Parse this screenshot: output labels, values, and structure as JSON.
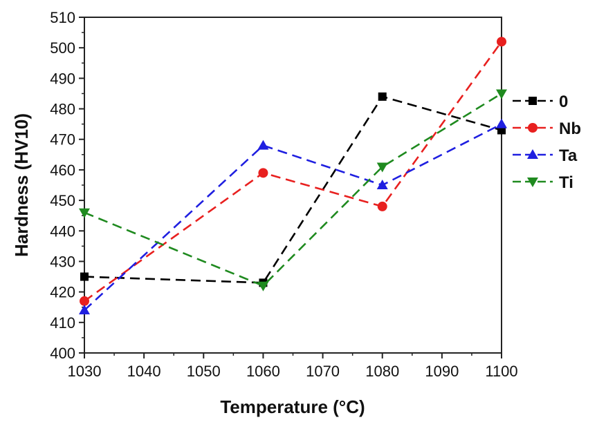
{
  "chart_data": {
    "type": "line",
    "xlabel": "Temperature (°C)",
    "ylabel": "Hardness (HV10)",
    "xlim": [
      1030,
      1100
    ],
    "ylim": [
      400,
      510
    ],
    "x_ticks": [
      1030,
      1040,
      1050,
      1060,
      1070,
      1080,
      1090,
      1100
    ],
    "y_ticks": [
      400,
      410,
      420,
      430,
      440,
      450,
      460,
      470,
      480,
      490,
      500,
      510
    ],
    "grid": false,
    "legend_position": "right",
    "x": [
      1030,
      1060,
      1080,
      1100
    ],
    "series": [
      {
        "name": "0",
        "color": "#000000",
        "marker": "square",
        "values": [
          425,
          423,
          484,
          473
        ]
      },
      {
        "name": "Nb",
        "color": "#e8201f",
        "marker": "circle",
        "values": [
          417,
          459,
          448,
          502
        ]
      },
      {
        "name": "Ta",
        "color": "#1f1fe0",
        "marker": "triangle-up",
        "values": [
          414,
          468,
          455,
          475
        ]
      },
      {
        "name": "Ti",
        "color": "#1f8a1f",
        "marker": "triangle-down",
        "values": [
          446,
          422,
          461,
          485
        ]
      }
    ]
  }
}
